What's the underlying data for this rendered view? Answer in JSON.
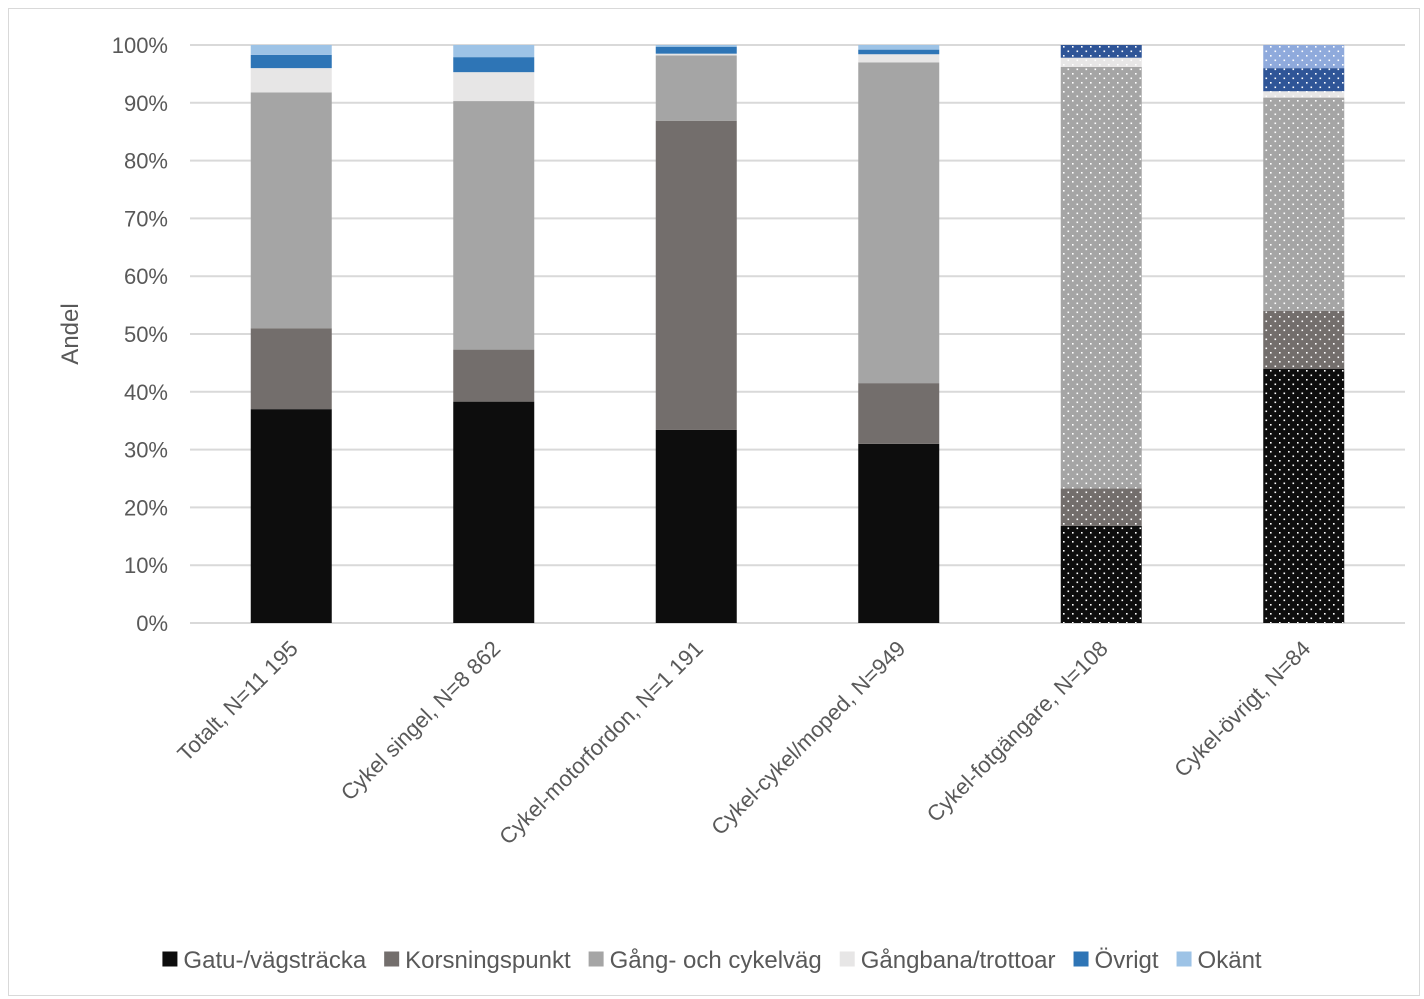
{
  "chart_data": {
    "type": "bar",
    "stacked": true,
    "percent": true,
    "title": "",
    "xlabel": "",
    "ylabel": "Andel",
    "ylim": [
      0,
      100
    ],
    "yticks": [
      "0%",
      "10%",
      "20%",
      "30%",
      "40%",
      "50%",
      "60%",
      "70%",
      "80%",
      "90%",
      "100%"
    ],
    "grid": "horizontal",
    "legend_position": "bottom",
    "categories": [
      "Totalt, N=11 195",
      "Cykel singel, N=8 862",
      "Cykel-motorfordon, N=1 191",
      "Cykel-cykel/moped, N=949",
      "Cykel-fotgängare, N=108",
      "Cykel-övrigt, N=84"
    ],
    "dotted_categories": [
      4,
      5
    ],
    "series": [
      {
        "name": "Gatu-/vägsträcka",
        "color": "#0d0d0d",
        "values": [
          37.0,
          38.3,
          33.4,
          31.0,
          16.8,
          44.0
        ]
      },
      {
        "name": "Korsningspunkt",
        "color": "#736e6c",
        "values": [
          14.0,
          9.0,
          53.5,
          10.5,
          6.5,
          10.0
        ]
      },
      {
        "name": "Gång- och cykelväg",
        "color": "#a5a5a5",
        "values": [
          40.8,
          43.0,
          11.3,
          55.5,
          72.9,
          36.9
        ]
      },
      {
        "name": "Gångbana/trottoar",
        "color": "#e7e6e6",
        "values": [
          4.2,
          5.0,
          0.3,
          1.4,
          1.6,
          1.1
        ]
      },
      {
        "name": "Övrigt",
        "color": "#2e75b6",
        "values": [
          2.3,
          2.6,
          1.2,
          0.8,
          2.2,
          4.0
        ]
      },
      {
        "name": "Okänt",
        "color": "#9dc3e6",
        "values": [
          1.7,
          2.1,
          0.3,
          0.8,
          0.0,
          4.0
        ]
      }
    ],
    "dotted_series_colors": {
      "Övrigt": "#2f5597",
      "Okänt": "#8faadc"
    }
  }
}
